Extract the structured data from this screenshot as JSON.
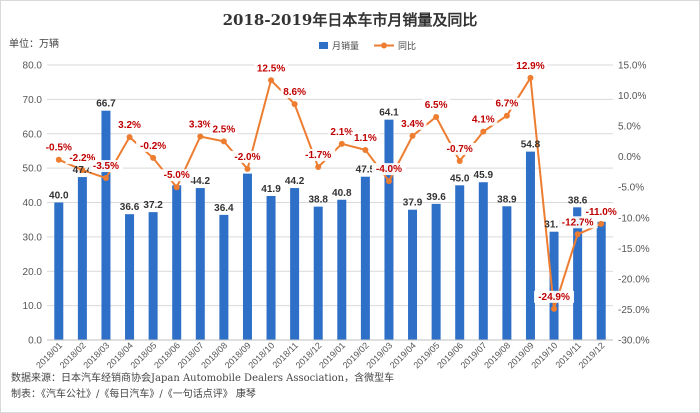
{
  "chart_data": {
    "type": "bar+line",
    "title": "2018-2019年日本车市月销量及同比",
    "unit_label": "单位：万辆",
    "categories": [
      "2018/01",
      "2018/02",
      "2018/03",
      "2018/04",
      "2018/05",
      "2018/06",
      "2018/07",
      "2018/08",
      "2018/09",
      "2018/10",
      "2018/11",
      "2018/12",
      "2019/01",
      "2019/02",
      "2019/03",
      "2019/04",
      "2019/05",
      "2019/06",
      "2019/07",
      "2019/08",
      "2019/09",
      "2019/10",
      "2019/11",
      "2019/12"
    ],
    "series": [
      {
        "name": "月销量",
        "type": "bar",
        "axis": "left",
        "color": "#2e6fc7",
        "values": [
          40.0,
          47.4,
          66.7,
          36.6,
          37.2,
          45.0,
          44.2,
          36.4,
          48.4,
          41.9,
          44.2,
          38.8,
          40.8,
          47.5,
          64.1,
          37.9,
          39.6,
          45.0,
          45.9,
          38.9,
          54.8,
          31.5,
          38.6,
          34.4
        ],
        "labels": [
          "40.0",
          "47.4",
          "66.7",
          "36.6",
          "37.2",
          "",
          "44.2",
          "36.4",
          "",
          "41.9",
          "44.2",
          "38.8",
          "40.8",
          "47.5",
          "64.1",
          "37.9",
          "39.6",
          "45.0",
          "45.9",
          "38.9",
          "54.8",
          "31.5",
          "38.6",
          ""
        ]
      },
      {
        "name": "同比",
        "type": "line",
        "axis": "right",
        "color": "#ed7d31",
        "values": [
          -0.5,
          -2.2,
          -3.5,
          3.2,
          -0.2,
          -5.0,
          3.3,
          2.5,
          -2.0,
          12.5,
          8.6,
          -1.7,
          2.1,
          1.1,
          -4.0,
          3.4,
          6.5,
          -0.7,
          4.1,
          6.7,
          12.9,
          -24.9,
          -12.7,
          -11.0
        ],
        "labels": [
          "-0.5%",
          "-2.2%",
          "-3.5%",
          "3.2%",
          "-0.2%",
          "-5.0%",
          "3.3%",
          "2.5%",
          "-2.0%",
          "12.5%",
          "8.6%",
          "-1.7%",
          "2.1%",
          "1.1%",
          "-4.0%",
          "3.4%",
          "6.5%",
          "-0.7%",
          "4.1%",
          "6.7%",
          "12.9%",
          "-24.9%",
          "-12.7%",
          "-11.0%"
        ]
      }
    ],
    "y_left": {
      "min": 0,
      "max": 80,
      "step": 10,
      "tick_labels": [
        "0.0",
        "10.0",
        "20.0",
        "30.0",
        "40.0",
        "50.0",
        "60.0",
        "70.0",
        "80.0"
      ]
    },
    "y_right": {
      "min": -30,
      "max": 15,
      "step": 5,
      "tick_labels": [
        "-30.0%",
        "-25.0%",
        "-20.0%",
        "-15.0%",
        "-10.0%",
        "-5.0%",
        "0.0%",
        "5.0%",
        "10.0%",
        "15.0%"
      ]
    },
    "grid": "horizontal",
    "legend_position": "top-center"
  },
  "footer": {
    "source_line": "数据来源：日本汽车经销商协会Japan Automobile Dealers Association，含微型车",
    "author_line": "制表：《汽车公社》/《每日汽车》/《一句话点评》 康琴"
  }
}
